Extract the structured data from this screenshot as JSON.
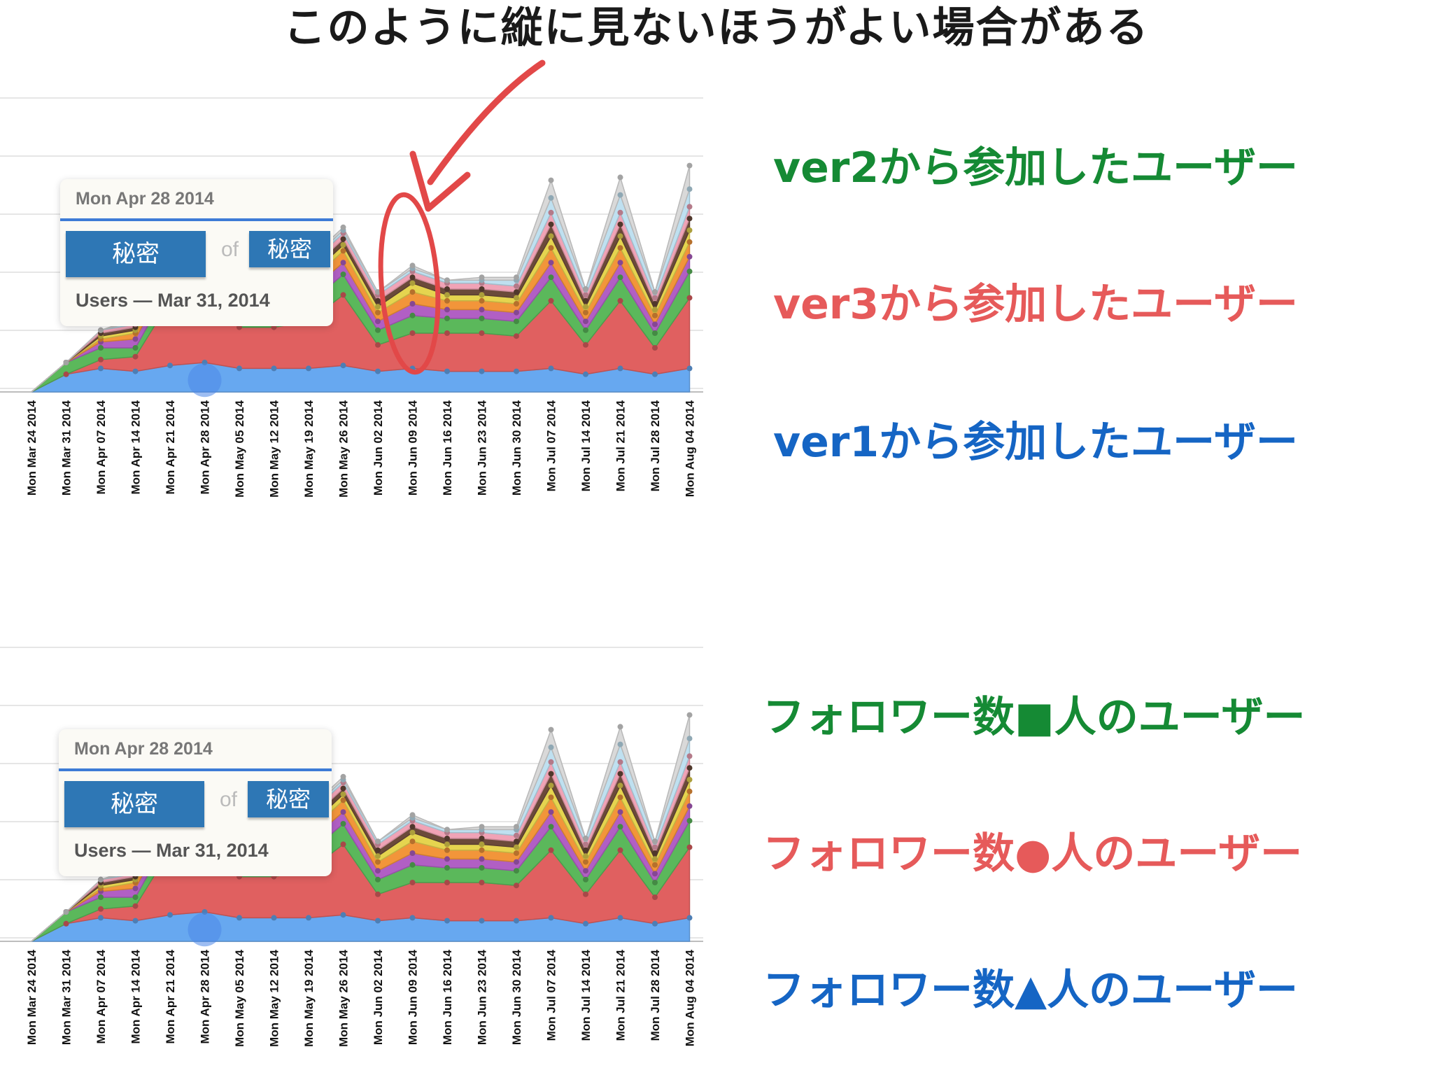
{
  "title": "このように縦に見ないほうがよい場合がある",
  "colors": {
    "green": "#158a34",
    "red": "#e65a5a",
    "blue": "#1565c4",
    "annotation": "#e24848"
  },
  "legend_top": [
    {
      "text": "ver2から参加したユーザー",
      "color": "#158a34"
    },
    {
      "text": "ver3から参加したユーザー",
      "color": "#e65a5a"
    },
    {
      "text": "ver1から参加したユーザー",
      "color": "#1565c4"
    }
  ],
  "legend_bottom": [
    {
      "text": "フォロワー数■人のユーザー",
      "color": "#158a34"
    },
    {
      "text": "フォロワー数●人のユーザー",
      "color": "#e65a5a"
    },
    {
      "text": "フォロワー数▲人のユーザー",
      "color": "#1565c4"
    }
  ],
  "tooltip": {
    "date": "Mon Apr 28 2014",
    "value": "秘密",
    "of": "of",
    "total": "秘密",
    "subtitle": "Users — Mar 31, 2014"
  },
  "chart_data": [
    {
      "type": "area",
      "stacked": true,
      "title": "",
      "grid": true,
      "ylim": [
        0,
        100
      ],
      "categories": [
        "Mon Mar 24 2014",
        "Mon Mar 31 2014",
        "Mon Apr 07 2014",
        "Mon Apr 14 2014",
        "Mon Apr 21 2014",
        "Mon Apr 28 2014",
        "Mon May 05 2014",
        "Mon May 12 2014",
        "Mon May 19 2014",
        "Mon May 26 2014",
        "Mon Jun 02 2014",
        "Mon Jun 09 2014",
        "Mon Jun 16 2014",
        "Mon Jun 23 2014",
        "Mon Jun 30 2014",
        "Mon Jul 07 2014",
        "Mon Jul 14 2014",
        "Mon Jul 21 2014",
        "Mon Jul 28 2014",
        "Mon Aug 04 2014"
      ],
      "series": [
        {
          "color": "#67a8f0",
          "values": [
            0,
            6,
            8,
            7,
            9,
            10,
            8,
            8,
            8,
            9,
            7,
            8,
            7,
            7,
            7,
            8,
            6,
            8,
            6,
            8
          ]
        },
        {
          "color": "#e06060",
          "values": [
            0,
            0,
            3,
            5,
            22,
            24,
            14,
            14,
            16,
            24,
            9,
            12,
            13,
            13,
            12,
            23,
            10,
            23,
            9,
            24
          ]
        },
        {
          "color": "#5bb85b",
          "values": [
            0,
            4,
            4,
            3,
            5,
            6,
            6,
            6,
            6,
            7,
            5,
            6,
            5,
            5,
            5,
            8,
            5,
            8,
            5,
            9
          ]
        },
        {
          "color": "#b15fc4",
          "values": [
            0,
            0,
            2,
            3,
            4,
            4,
            4,
            4,
            4,
            4,
            3,
            4,
            3,
            3,
            3,
            5,
            3,
            5,
            3,
            5
          ]
        },
        {
          "color": "#f2953a",
          "values": [
            0,
            0,
            1,
            2,
            3,
            4,
            3,
            3,
            3,
            4,
            3,
            4,
            3,
            3,
            3,
            5,
            3,
            5,
            3,
            5
          ]
        },
        {
          "color": "#e5d44f",
          "values": [
            0,
            0,
            1,
            1,
            2,
            2,
            2,
            2,
            2,
            2,
            2,
            3,
            2,
            2,
            2,
            4,
            2,
            4,
            2,
            4
          ]
        },
        {
          "color": "#6b4a3a",
          "values": [
            0,
            0,
            1,
            1,
            2,
            2,
            2,
            2,
            2,
            2,
            2,
            2,
            2,
            2,
            2,
            4,
            2,
            4,
            2,
            4
          ]
        },
        {
          "color": "#f0a3b6",
          "values": [
            0,
            0,
            1,
            1,
            2,
            2,
            2,
            2,
            2,
            2,
            2,
            2,
            2,
            2,
            2,
            4,
            2,
            4,
            2,
            4
          ]
        },
        {
          "color": "#bfe0f0",
          "values": [
            0,
            0,
            0,
            1,
            1,
            1,
            1,
            1,
            1,
            1,
            1,
            1,
            1,
            1,
            2,
            5,
            2,
            6,
            2,
            6
          ]
        },
        {
          "color": "#d9d9d9",
          "values": [
            0,
            0,
            0,
            1,
            1,
            1,
            1,
            1,
            1,
            1,
            0,
            1,
            0,
            1,
            1,
            6,
            0,
            6,
            0,
            8
          ]
        }
      ]
    },
    {
      "type": "area",
      "stacked": true,
      "title": "",
      "grid": true,
      "ylim": [
        0,
        100
      ],
      "categories": [
        "Mon Mar 24 2014",
        "Mon Mar 31 2014",
        "Mon Apr 07 2014",
        "Mon Apr 14 2014",
        "Mon Apr 21 2014",
        "Mon Apr 28 2014",
        "Mon May 05 2014",
        "Mon May 12 2014",
        "Mon May 19 2014",
        "Mon May 26 2014",
        "Mon Jun 02 2014",
        "Mon Jun 09 2014",
        "Mon Jun 16 2014",
        "Mon Jun 23 2014",
        "Mon Jun 30 2014",
        "Mon Jul 07 2014",
        "Mon Jul 14 2014",
        "Mon Jul 21 2014",
        "Mon Jul 28 2014",
        "Mon Aug 04 2014"
      ],
      "series": [
        {
          "color": "#67a8f0",
          "values": [
            0,
            6,
            8,
            7,
            9,
            10,
            8,
            8,
            8,
            9,
            7,
            8,
            7,
            7,
            7,
            8,
            6,
            8,
            6,
            8
          ]
        },
        {
          "color": "#e06060",
          "values": [
            0,
            0,
            3,
            5,
            22,
            24,
            14,
            14,
            16,
            24,
            9,
            12,
            13,
            13,
            12,
            23,
            10,
            23,
            9,
            24
          ]
        },
        {
          "color": "#5bb85b",
          "values": [
            0,
            4,
            4,
            3,
            5,
            6,
            6,
            6,
            6,
            7,
            5,
            6,
            5,
            5,
            5,
            8,
            5,
            8,
            5,
            9
          ]
        },
        {
          "color": "#b15fc4",
          "values": [
            0,
            0,
            2,
            3,
            4,
            4,
            4,
            4,
            4,
            4,
            3,
            4,
            3,
            3,
            3,
            5,
            3,
            5,
            3,
            5
          ]
        },
        {
          "color": "#f2953a",
          "values": [
            0,
            0,
            1,
            2,
            3,
            4,
            3,
            3,
            3,
            4,
            3,
            4,
            3,
            3,
            3,
            5,
            3,
            5,
            3,
            5
          ]
        },
        {
          "color": "#e5d44f",
          "values": [
            0,
            0,
            1,
            1,
            2,
            2,
            2,
            2,
            2,
            2,
            2,
            3,
            2,
            2,
            2,
            4,
            2,
            4,
            2,
            4
          ]
        },
        {
          "color": "#6b4a3a",
          "values": [
            0,
            0,
            1,
            1,
            2,
            2,
            2,
            2,
            2,
            2,
            2,
            2,
            2,
            2,
            2,
            4,
            2,
            4,
            2,
            4
          ]
        },
        {
          "color": "#f0a3b6",
          "values": [
            0,
            0,
            1,
            1,
            2,
            2,
            2,
            2,
            2,
            2,
            2,
            2,
            2,
            2,
            2,
            4,
            2,
            4,
            2,
            4
          ]
        },
        {
          "color": "#bfe0f0",
          "values": [
            0,
            0,
            0,
            1,
            1,
            1,
            1,
            1,
            1,
            1,
            1,
            1,
            1,
            1,
            2,
            5,
            2,
            6,
            2,
            6
          ]
        },
        {
          "color": "#d9d9d9",
          "values": [
            0,
            0,
            0,
            1,
            1,
            1,
            1,
            1,
            1,
            1,
            0,
            1,
            0,
            1,
            1,
            6,
            0,
            6,
            0,
            8
          ]
        }
      ]
    }
  ]
}
